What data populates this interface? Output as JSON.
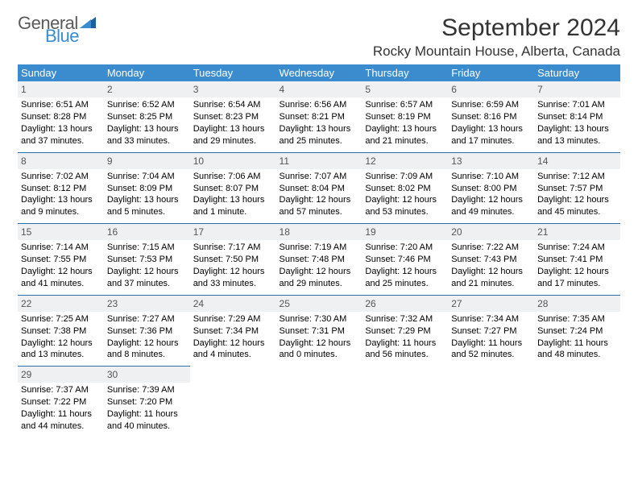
{
  "brand": {
    "general": "General",
    "blue": "Blue"
  },
  "title": {
    "month": "September 2024",
    "location": "Rocky Mountain House, Alberta, Canada"
  },
  "colors": {
    "header_bg": "#3a8cce",
    "rule": "#2f6fa8",
    "dayband": "#eef0f2",
    "text": "#000000",
    "logo_grey": "#5a5a5a",
    "logo_blue": "#3a8cce"
  },
  "dow": [
    "Sunday",
    "Monday",
    "Tuesday",
    "Wednesday",
    "Thursday",
    "Friday",
    "Saturday"
  ],
  "weeks": [
    [
      {
        "n": "1",
        "sr": "Sunrise: 6:51 AM",
        "ss": "Sunset: 8:28 PM",
        "d1": "Daylight: 13 hours",
        "d2": "and 37 minutes."
      },
      {
        "n": "2",
        "sr": "Sunrise: 6:52 AM",
        "ss": "Sunset: 8:25 PM",
        "d1": "Daylight: 13 hours",
        "d2": "and 33 minutes."
      },
      {
        "n": "3",
        "sr": "Sunrise: 6:54 AM",
        "ss": "Sunset: 8:23 PM",
        "d1": "Daylight: 13 hours",
        "d2": "and 29 minutes."
      },
      {
        "n": "4",
        "sr": "Sunrise: 6:56 AM",
        "ss": "Sunset: 8:21 PM",
        "d1": "Daylight: 13 hours",
        "d2": "and 25 minutes."
      },
      {
        "n": "5",
        "sr": "Sunrise: 6:57 AM",
        "ss": "Sunset: 8:19 PM",
        "d1": "Daylight: 13 hours",
        "d2": "and 21 minutes."
      },
      {
        "n": "6",
        "sr": "Sunrise: 6:59 AM",
        "ss": "Sunset: 8:16 PM",
        "d1": "Daylight: 13 hours",
        "d2": "and 17 minutes."
      },
      {
        "n": "7",
        "sr": "Sunrise: 7:01 AM",
        "ss": "Sunset: 8:14 PM",
        "d1": "Daylight: 13 hours",
        "d2": "and 13 minutes."
      }
    ],
    [
      {
        "n": "8",
        "sr": "Sunrise: 7:02 AM",
        "ss": "Sunset: 8:12 PM",
        "d1": "Daylight: 13 hours",
        "d2": "and 9 minutes."
      },
      {
        "n": "9",
        "sr": "Sunrise: 7:04 AM",
        "ss": "Sunset: 8:09 PM",
        "d1": "Daylight: 13 hours",
        "d2": "and 5 minutes."
      },
      {
        "n": "10",
        "sr": "Sunrise: 7:06 AM",
        "ss": "Sunset: 8:07 PM",
        "d1": "Daylight: 13 hours",
        "d2": "and 1 minute."
      },
      {
        "n": "11",
        "sr": "Sunrise: 7:07 AM",
        "ss": "Sunset: 8:04 PM",
        "d1": "Daylight: 12 hours",
        "d2": "and 57 minutes."
      },
      {
        "n": "12",
        "sr": "Sunrise: 7:09 AM",
        "ss": "Sunset: 8:02 PM",
        "d1": "Daylight: 12 hours",
        "d2": "and 53 minutes."
      },
      {
        "n": "13",
        "sr": "Sunrise: 7:10 AM",
        "ss": "Sunset: 8:00 PM",
        "d1": "Daylight: 12 hours",
        "d2": "and 49 minutes."
      },
      {
        "n": "14",
        "sr": "Sunrise: 7:12 AM",
        "ss": "Sunset: 7:57 PM",
        "d1": "Daylight: 12 hours",
        "d2": "and 45 minutes."
      }
    ],
    [
      {
        "n": "15",
        "sr": "Sunrise: 7:14 AM",
        "ss": "Sunset: 7:55 PM",
        "d1": "Daylight: 12 hours",
        "d2": "and 41 minutes."
      },
      {
        "n": "16",
        "sr": "Sunrise: 7:15 AM",
        "ss": "Sunset: 7:53 PM",
        "d1": "Daylight: 12 hours",
        "d2": "and 37 minutes."
      },
      {
        "n": "17",
        "sr": "Sunrise: 7:17 AM",
        "ss": "Sunset: 7:50 PM",
        "d1": "Daylight: 12 hours",
        "d2": "and 33 minutes."
      },
      {
        "n": "18",
        "sr": "Sunrise: 7:19 AM",
        "ss": "Sunset: 7:48 PM",
        "d1": "Daylight: 12 hours",
        "d2": "and 29 minutes."
      },
      {
        "n": "19",
        "sr": "Sunrise: 7:20 AM",
        "ss": "Sunset: 7:46 PM",
        "d1": "Daylight: 12 hours",
        "d2": "and 25 minutes."
      },
      {
        "n": "20",
        "sr": "Sunrise: 7:22 AM",
        "ss": "Sunset: 7:43 PM",
        "d1": "Daylight: 12 hours",
        "d2": "and 21 minutes."
      },
      {
        "n": "21",
        "sr": "Sunrise: 7:24 AM",
        "ss": "Sunset: 7:41 PM",
        "d1": "Daylight: 12 hours",
        "d2": "and 17 minutes."
      }
    ],
    [
      {
        "n": "22",
        "sr": "Sunrise: 7:25 AM",
        "ss": "Sunset: 7:38 PM",
        "d1": "Daylight: 12 hours",
        "d2": "and 13 minutes."
      },
      {
        "n": "23",
        "sr": "Sunrise: 7:27 AM",
        "ss": "Sunset: 7:36 PM",
        "d1": "Daylight: 12 hours",
        "d2": "and 8 minutes."
      },
      {
        "n": "24",
        "sr": "Sunrise: 7:29 AM",
        "ss": "Sunset: 7:34 PM",
        "d1": "Daylight: 12 hours",
        "d2": "and 4 minutes."
      },
      {
        "n": "25",
        "sr": "Sunrise: 7:30 AM",
        "ss": "Sunset: 7:31 PM",
        "d1": "Daylight: 12 hours",
        "d2": "and 0 minutes."
      },
      {
        "n": "26",
        "sr": "Sunrise: 7:32 AM",
        "ss": "Sunset: 7:29 PM",
        "d1": "Daylight: 11 hours",
        "d2": "and 56 minutes."
      },
      {
        "n": "27",
        "sr": "Sunrise: 7:34 AM",
        "ss": "Sunset: 7:27 PM",
        "d1": "Daylight: 11 hours",
        "d2": "and 52 minutes."
      },
      {
        "n": "28",
        "sr": "Sunrise: 7:35 AM",
        "ss": "Sunset: 7:24 PM",
        "d1": "Daylight: 11 hours",
        "d2": "and 48 minutes."
      }
    ],
    [
      {
        "n": "29",
        "sr": "Sunrise: 7:37 AM",
        "ss": "Sunset: 7:22 PM",
        "d1": "Daylight: 11 hours",
        "d2": "and 44 minutes."
      },
      {
        "n": "30",
        "sr": "Sunrise: 7:39 AM",
        "ss": "Sunset: 7:20 PM",
        "d1": "Daylight: 11 hours",
        "d2": "and 40 minutes."
      },
      null,
      null,
      null,
      null,
      null
    ]
  ]
}
